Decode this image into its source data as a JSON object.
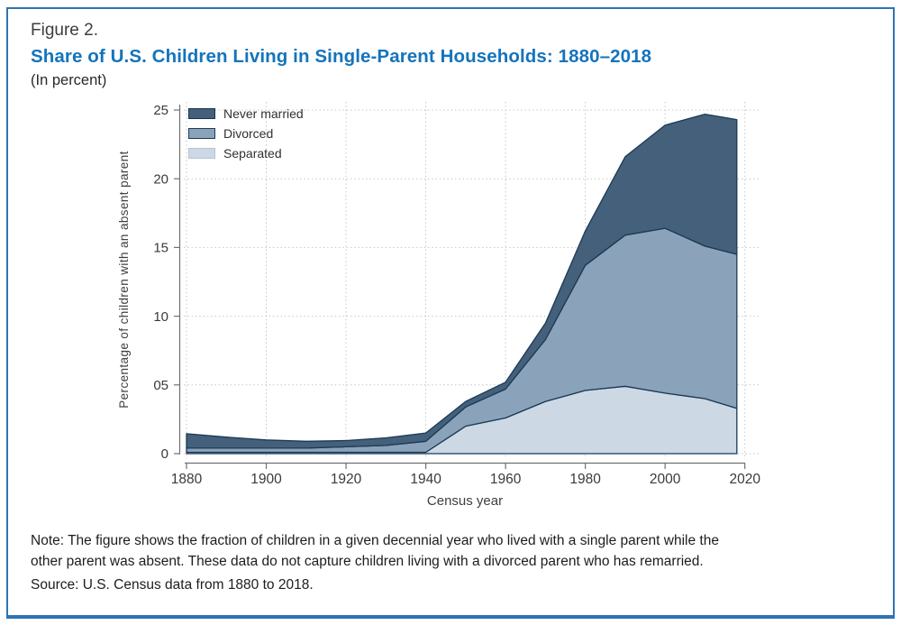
{
  "figure": {
    "label": "Figure 2.",
    "title": "Share of U.S. Children Living in Single-Parent Households: 1880–2018",
    "subtitle": "(In percent)",
    "note_line1": "Note: The figure shows the fraction of children in a given decennial year who lived with a single parent while the",
    "note_line2": "other parent was absent. These data do not capture children living with a divorced parent who has remarried.",
    "source": "Source: U.S. Census data from 1880 to 2018.",
    "title_color": "#1474bc",
    "border_color": "#2e74b5"
  },
  "chart_data": {
    "type": "area",
    "stacked": true,
    "title": "Share of U.S. Children Living in Single-Parent Households: 1880–2018",
    "xlabel": "Census year",
    "ylabel": "Percentage of children with an absent parent",
    "x": [
      1880,
      1890,
      1900,
      1910,
      1920,
      1930,
      1940,
      1950,
      1960,
      1970,
      1980,
      1990,
      2000,
      2010,
      2018
    ],
    "series": [
      {
        "name": "Separated",
        "values": [
          0.1,
          0.1,
          0.1,
          0.1,
          0.1,
          0.1,
          0.1,
          2.0,
          2.6,
          3.8,
          4.6,
          4.9,
          4.4,
          4.0,
          3.3
        ],
        "color": "#ccd9e5",
        "swatch_border": "#b3c4d3"
      },
      {
        "name": "Divorced",
        "values": [
          0.3,
          0.3,
          0.3,
          0.3,
          0.4,
          0.5,
          0.8,
          1.4,
          2.1,
          4.5,
          9.1,
          11.0,
          12.0,
          11.1,
          11.2
        ],
        "color": "#8ba3ba",
        "swatch_border": "#1d3b57"
      },
      {
        "name": "Never married",
        "values": [
          1.05,
          0.8,
          0.6,
          0.5,
          0.45,
          0.55,
          0.6,
          0.4,
          0.5,
          1.2,
          2.5,
          5.7,
          7.5,
          9.6,
          9.8
        ],
        "color": "#45607b",
        "swatch_border": "#16334f"
      }
    ],
    "totals": [
      1.45,
      1.2,
      1.0,
      0.9,
      0.95,
      1.15,
      1.5,
      3.8,
      5.2,
      9.5,
      16.2,
      21.6,
      23.9,
      24.7,
      24.3
    ],
    "area_stroke": "#1b3a57",
    "legend": {
      "order": [
        "Never married",
        "Divorced",
        "Separated"
      ],
      "position": "top-left"
    },
    "xlim": [
      1880,
      2020
    ],
    "ylim": [
      0,
      25
    ],
    "x_ticks": {
      "values": [
        1880,
        1900,
        1920,
        1940,
        1960,
        1980,
        2000,
        2020
      ],
      "labels": [
        "1880",
        "1900",
        "1920",
        "1940",
        "1960",
        "1980",
        "2000",
        "2020"
      ]
    },
    "y_ticks": {
      "values": [
        0,
        5,
        10,
        15,
        20,
        25
      ],
      "labels": [
        "0",
        "05",
        "10",
        "15",
        "20",
        "25"
      ]
    },
    "grid": {
      "style": "dotted",
      "color": "#c6c6c6"
    },
    "axis_color": "#707070",
    "tick_label_color": "#3a3a3a"
  }
}
